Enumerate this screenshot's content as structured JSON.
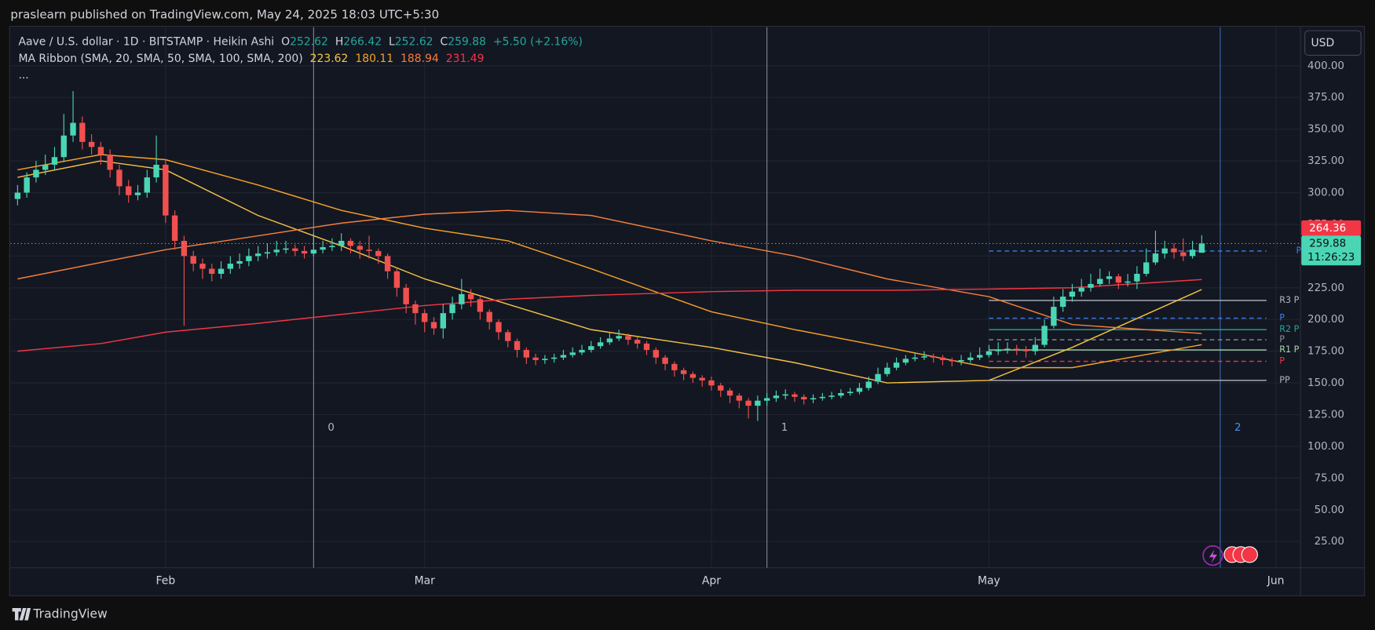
{
  "chart_data": {
    "type": "candlestick",
    "header": "praslearn published on TradingView.com, May 24, 2025 18:03 UTC+5:30",
    "symbol": "Aave / U.S. dollar · 1D · BITSTAMP · Heikin Ashi",
    "ohlc_labels": [
      "O",
      "H",
      "L",
      "C"
    ],
    "change_label": "+5.50 (+2.16%)",
    "indicator": "MA Ribbon (SMA, 20, SMA, 50, SMA, 100, SMA, 200)",
    "legend_more": "...",
    "currency": "USD",
    "countdown": "11:26:23",
    "brand": "TradingView",
    "up_color": "#4ad6b4",
    "down_color": "#f0504f",
    "ylim": [
      4.3,
      430.4
    ],
    "xlim": [
      -0.76,
      138.67
    ],
    "yticks": [
      {
        "value": 25,
        "label": "25.00"
      },
      {
        "value": 50,
        "label": "50.00"
      },
      {
        "value": 75,
        "label": "75.00"
      },
      {
        "value": 100,
        "label": "100.00"
      },
      {
        "value": 125,
        "label": "125.00"
      },
      {
        "value": 150,
        "label": "150.00"
      },
      {
        "value": 175,
        "label": "175.00"
      },
      {
        "value": 200,
        "label": "200.00"
      },
      {
        "value": 225,
        "label": "225.00"
      },
      {
        "value": 250,
        "label": "250.00"
      },
      {
        "value": 275,
        "label": "275.00"
      },
      {
        "value": 300,
        "label": "300.00"
      },
      {
        "value": 325,
        "label": "325.00"
      },
      {
        "value": 350,
        "label": "350.00"
      },
      {
        "value": 375,
        "label": "375.00"
      },
      {
        "value": 400,
        "label": "400.00"
      }
    ],
    "xticks": [
      {
        "value": 16,
        "label": "Feb"
      },
      {
        "value": 44,
        "label": "Mar"
      },
      {
        "value": 75,
        "label": "Apr"
      },
      {
        "value": 105,
        "label": "May"
      },
      {
        "value": 136,
        "label": "Jun"
      }
    ],
    "grid": true,
    "candles": [
      [
        295,
        306,
        290,
        300
      ],
      [
        300,
        316,
        296,
        312
      ],
      [
        312,
        325,
        308,
        318
      ],
      [
        318,
        330,
        314,
        322
      ],
      [
        322,
        336,
        318,
        328
      ],
      [
        328,
        362,
        324,
        345
      ],
      [
        345,
        380,
        340,
        355
      ],
      [
        355,
        360,
        334,
        340
      ],
      [
        340,
        346,
        330,
        336
      ],
      [
        336,
        340,
        322,
        330
      ],
      [
        330,
        334,
        312,
        318
      ],
      [
        318,
        322,
        298,
        305
      ],
      [
        305,
        310,
        292,
        298
      ],
      [
        298,
        306,
        294,
        300
      ],
      [
        300,
        318,
        296,
        312
      ],
      [
        312,
        345,
        308,
        322
      ],
      [
        322,
        326,
        276,
        282
      ],
      [
        282,
        286,
        255,
        262
      ],
      [
        262,
        266,
        195,
        250
      ],
      [
        250,
        254,
        238,
        244
      ],
      [
        244,
        248,
        232,
        240
      ],
      [
        240,
        244,
        230,
        236
      ],
      [
        236,
        246,
        232,
        240
      ],
      [
        240,
        250,
        236,
        244
      ],
      [
        244,
        252,
        240,
        246
      ],
      [
        246,
        256,
        242,
        250
      ],
      [
        250,
        258,
        246,
        252
      ],
      [
        252,
        260,
        248,
        253
      ],
      [
        253,
        262,
        250,
        255
      ],
      [
        255,
        262,
        252,
        256
      ],
      [
        256,
        259,
        250,
        254
      ],
      [
        254,
        258,
        248,
        252
      ],
      [
        252,
        268,
        250,
        255
      ],
      [
        255,
        262,
        252,
        257
      ],
      [
        257,
        264,
        254,
        258
      ],
      [
        258,
        268,
        254,
        262
      ],
      [
        262,
        264,
        252,
        258
      ],
      [
        258,
        262,
        248,
        255
      ],
      [
        255,
        266,
        248,
        254
      ],
      [
        254,
        256,
        244,
        250
      ],
      [
        250,
        252,
        232,
        238
      ],
      [
        238,
        240,
        218,
        225
      ],
      [
        225,
        228,
        205,
        212
      ],
      [
        212,
        215,
        196,
        205
      ],
      [
        205,
        208,
        190,
        198
      ],
      [
        198,
        202,
        188,
        193
      ],
      [
        193,
        212,
        185,
        205
      ],
      [
        205,
        218,
        200,
        212
      ],
      [
        212,
        232,
        208,
        220
      ],
      [
        220,
        224,
        210,
        216
      ],
      [
        216,
        218,
        200,
        206
      ],
      [
        206,
        208,
        192,
        198
      ],
      [
        198,
        200,
        184,
        190
      ],
      [
        190,
        192,
        178,
        183
      ],
      [
        183,
        185,
        170,
        176
      ],
      [
        176,
        178,
        165,
        170
      ],
      [
        170,
        173,
        164,
        168
      ],
      [
        168,
        172,
        165,
        169
      ],
      [
        169,
        173,
        166,
        170
      ],
      [
        170,
        176,
        168,
        172
      ],
      [
        172,
        178,
        170,
        174
      ],
      [
        174,
        180,
        172,
        176
      ],
      [
        176,
        183,
        174,
        179
      ],
      [
        179,
        186,
        177,
        182
      ],
      [
        182,
        190,
        180,
        185
      ],
      [
        185,
        192,
        183,
        187
      ],
      [
        187,
        189,
        180,
        184
      ],
      [
        184,
        186,
        177,
        181
      ],
      [
        181,
        183,
        172,
        176
      ],
      [
        176,
        178,
        165,
        170
      ],
      [
        170,
        172,
        160,
        165
      ],
      [
        165,
        167,
        155,
        160
      ],
      [
        160,
        162,
        152,
        157
      ],
      [
        157,
        159,
        150,
        154
      ],
      [
        154,
        156,
        147,
        152
      ],
      [
        152,
        155,
        144,
        148
      ],
      [
        148,
        150,
        139,
        144
      ],
      [
        144,
        146,
        134,
        140
      ],
      [
        140,
        142,
        130,
        136
      ],
      [
        136,
        138,
        122,
        132
      ],
      [
        132,
        140,
        120,
        136
      ],
      [
        136,
        142,
        132,
        138
      ],
      [
        138,
        144,
        135,
        140
      ],
      [
        140,
        145,
        137,
        141
      ],
      [
        141,
        143,
        135,
        139
      ],
      [
        139,
        141,
        133,
        137
      ],
      [
        137,
        141,
        134,
        138
      ],
      [
        138,
        142,
        136,
        139
      ],
      [
        139,
        143,
        137,
        140
      ],
      [
        140,
        145,
        138,
        142
      ],
      [
        142,
        146,
        140,
        143
      ],
      [
        143,
        150,
        141,
        146
      ],
      [
        146,
        155,
        144,
        151
      ],
      [
        151,
        162,
        149,
        157
      ],
      [
        157,
        166,
        155,
        162
      ],
      [
        162,
        170,
        160,
        166
      ],
      [
        166,
        172,
        164,
        169
      ],
      [
        169,
        174,
        167,
        170
      ],
      [
        170,
        175,
        168,
        171
      ],
      [
        171,
        173,
        166,
        170
      ],
      [
        170,
        172,
        164,
        168
      ],
      [
        168,
        170,
        163,
        167
      ],
      [
        167,
        172,
        164,
        168
      ],
      [
        168,
        174,
        166,
        170
      ],
      [
        170,
        178,
        168,
        172
      ],
      [
        172,
        180,
        170,
        175
      ],
      [
        175,
        182,
        172,
        176
      ],
      [
        176,
        182,
        173,
        177
      ],
      [
        177,
        180,
        172,
        176
      ],
      [
        176,
        179,
        170,
        175
      ],
      [
        175,
        186,
        172,
        180
      ],
      [
        180,
        200,
        178,
        195
      ],
      [
        195,
        218,
        193,
        210
      ],
      [
        210,
        224,
        206,
        218
      ],
      [
        218,
        228,
        214,
        222
      ],
      [
        222,
        232,
        218,
        225
      ],
      [
        225,
        236,
        222,
        228
      ],
      [
        228,
        240,
        226,
        232
      ],
      [
        232,
        238,
        228,
        234
      ],
      [
        234,
        236,
        224,
        229
      ],
      [
        229,
        236,
        226,
        230
      ],
      [
        230,
        242,
        224,
        236
      ],
      [
        236,
        256,
        234,
        245
      ],
      [
        245,
        270,
        243,
        252
      ],
      [
        252,
        262,
        248,
        256
      ],
      [
        256,
        260,
        248,
        253
      ],
      [
        253,
        264,
        246,
        250
      ],
      [
        250,
        262,
        248,
        255
      ],
      [
        252.62,
        266.42,
        252.62,
        259.88
      ]
    ],
    "ma": [
      {
        "color": "#f6c343",
        "x": [
          0,
          9,
          16,
          26,
          35,
          44,
          53,
          62,
          75,
          84,
          94,
          105,
          114,
          128
        ],
        "values": [
          312,
          325,
          318,
          282,
          258,
          232,
          212,
          192,
          178,
          166,
          150,
          152,
          178,
          223.62
        ]
      },
      {
        "color": "#f7a325",
        "x": [
          0,
          9,
          16,
          26,
          35,
          44,
          53,
          62,
          75,
          84,
          94,
          105,
          114,
          128
        ],
        "values": [
          318,
          330,
          326,
          306,
          286,
          272,
          262,
          240,
          206,
          192,
          178,
          162,
          162,
          180.11
        ]
      },
      {
        "color": "#f57f3b",
        "x": [
          0,
          9,
          16,
          26,
          35,
          44,
          53,
          62,
          75,
          84,
          94,
          105,
          114,
          128
        ],
        "values": [
          232,
          245,
          255,
          266,
          276,
          283,
          286,
          282,
          262,
          250,
          232,
          218,
          196,
          188.94
        ]
      },
      {
        "color": "#f23645",
        "x": [
          0,
          9,
          16,
          26,
          35,
          44,
          53,
          62,
          75,
          84,
          94,
          105,
          114,
          128
        ],
        "values": [
          175,
          181,
          190,
          197,
          204,
          211,
          216,
          219,
          222,
          223,
          223,
          224,
          225,
          231.49
        ]
      }
    ],
    "pivots": [
      {
        "label": "P",
        "value": 254,
        "color": "#3d7ee8",
        "dashed": true,
        "x": [
          105,
          135
        ]
      },
      {
        "label": "R3 P",
        "value": 215,
        "color": "#b2b5be",
        "dashed": false,
        "x": [
          105,
          135
        ]
      },
      {
        "label": "P",
        "value": 201,
        "color": "#3d7ee8",
        "dashed": true,
        "x": [
          105,
          135
        ]
      },
      {
        "label": "R2 P",
        "value": 192,
        "color": "#26a69a",
        "dashed": false,
        "x": [
          105,
          135
        ]
      },
      {
        "label": "P",
        "value": 184,
        "color": "#8a8f99",
        "dashed": true,
        "x": [
          105,
          135
        ]
      },
      {
        "label": "R1 P",
        "value": 176,
        "color": "#a5d6a7",
        "dashed": false,
        "x": [
          105,
          135
        ]
      },
      {
        "label": "P",
        "value": 167,
        "color": "#f23645",
        "dashed": true,
        "x": [
          105,
          135
        ]
      },
      {
        "label": "PP",
        "value": 152,
        "color": "#b2b5be",
        "dashed": false,
        "x": [
          105,
          135
        ]
      }
    ],
    "cycle_lines": [
      {
        "label": "0",
        "x": 32,
        "color": "#b2b5be"
      },
      {
        "label": "1",
        "x": 81,
        "color": "#b2b5be"
      },
      {
        "label": "2",
        "x": 130,
        "color": "#4a8cf0"
      }
    ],
    "price_labels": [
      {
        "value": 264.36,
        "color": "#f23645"
      }
    ]
  }
}
